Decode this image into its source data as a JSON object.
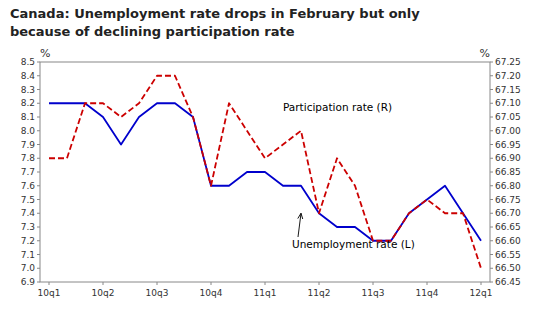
{
  "chart_data": {
    "type": "line",
    "title": "Canada: Unemployment rate drops in February but only",
    "subtitle": "because of declining participation rate",
    "y_label": "%",
    "y2_label": "%",
    "categories": [
      "10q1",
      null,
      null,
      "10q2",
      null,
      null,
      "10q3",
      null,
      null,
      "10q4",
      null,
      null,
      "11q1",
      null,
      null,
      "11q2",
      null,
      null,
      "11q3",
      null,
      null,
      "11q4",
      null,
      null,
      "12q1"
    ],
    "series": [
      {
        "name": "Unemployment rate (L)",
        "color": "#0000CC",
        "line_style": "solid",
        "values": [
          8.2,
          8.2,
          8.2,
          8.1,
          7.9,
          8.1,
          8.2,
          8.2,
          8.1,
          7.6,
          7.6,
          7.7,
          7.7,
          7.6,
          7.6,
          7.4,
          7.3,
          7.3,
          7.2,
          7.2,
          7.4,
          7.5,
          7.6,
          7.4,
          7.2
        ]
      },
      {
        "name": "Participation rate (R)",
        "color": "#CC0000",
        "line_style": "dashed",
        "axis": "y2",
        "values": [
          66.9,
          66.9,
          67.1,
          67.1,
          67.05,
          67.1,
          67.2,
          67.2,
          67.05,
          66.8,
          67.1,
          67.0,
          66.9,
          66.95,
          67.0,
          66.7,
          66.9,
          66.8,
          66.6,
          66.6,
          66.7,
          66.75,
          66.7,
          66.7,
          66.5
        ]
      }
    ],
    "ylim": [
      6.9,
      8.5
    ],
    "yticks": [
      6.9,
      {
        "value": 7.0,
        "label": "7.0"
      },
      7.1,
      7.2,
      7.3,
      7.4,
      7.5,
      7.6,
      7.7,
      7.8,
      7.9,
      {
        "value": 8.0,
        "label": "8.0"
      },
      8.1,
      8.2,
      8.3,
      8.4,
      8.5
    ],
    "y2lim": [
      66.45,
      67.25
    ],
    "y2ticks": [
      66.45,
      {
        "value": 66.5,
        "label": "66.50"
      },
      66.55,
      {
        "value": 66.6,
        "label": "66.60"
      },
      66.65,
      {
        "value": 66.7,
        "label": "66.70"
      },
      66.75,
      {
        "value": 66.8,
        "label": "66.80"
      },
      66.85,
      {
        "value": 66.9,
        "label": "66.90"
      },
      66.95,
      {
        "value": 67.0,
        "label": "67.00"
      },
      67.05,
      {
        "value": 67.1,
        "label": "67.10"
      },
      67.15,
      {
        "value": 67.2,
        "label": "67.20"
      },
      67.25
    ],
    "annotations": [
      {
        "text": "Participation rate (R)",
        "x": 13,
        "y": 67.06,
        "axis": "y2"
      },
      {
        "text": "Unemployment rate (L)",
        "x": 14,
        "y": 7.4,
        "text_x": 13.5,
        "text_y": 7.22
      }
    ],
    "grid": false
  }
}
